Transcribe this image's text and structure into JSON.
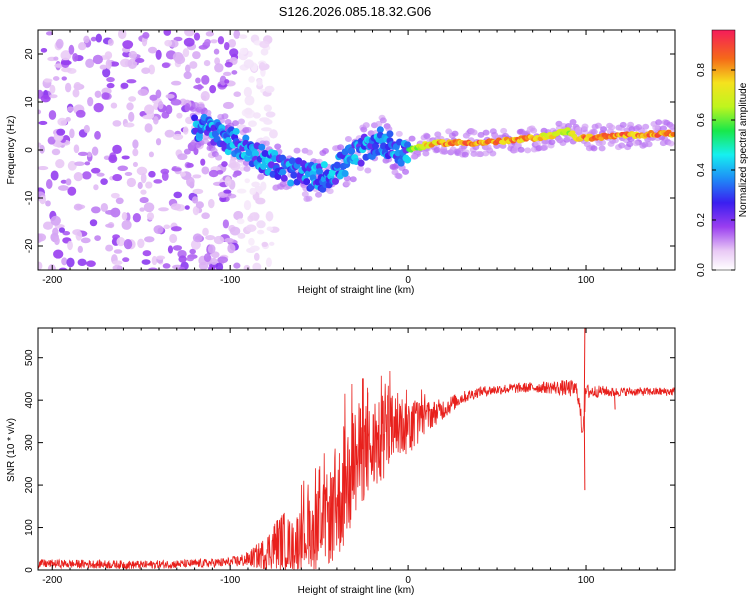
{
  "figure_title": "S126.2026.085.18.32.G06",
  "chart_data": [
    {
      "type": "heatmap",
      "title": "S126.2026.085.18.32.G06",
      "xlabel": "Height of straight line (km)",
      "ylabel": "Frequency (Hz)",
      "xlim": [
        -208,
        150
      ],
      "ylim": [
        -25,
        25
      ],
      "xticks": [
        -200,
        -100,
        0,
        100
      ],
      "yticks": [
        -20,
        -10,
        0,
        10,
        20
      ],
      "colorbar": {
        "label": "Normalized spectral amplitude",
        "range": [
          0.0,
          0.96
        ],
        "ticks": [
          0.0,
          0.2,
          0.4,
          0.6,
          0.8
        ]
      },
      "ridge": {
        "description": "Dominant frequency track (Hz) vs height (km)",
        "x": [
          -120,
          -110,
          -100,
          -90,
          -80,
          -70,
          -60,
          -50,
          -40,
          -30,
          -20,
          -15,
          -10,
          -5,
          0,
          10,
          20,
          40,
          60,
          80,
          90,
          95,
          100,
          120,
          150
        ],
        "y": [
          5,
          4,
          2,
          0,
          -2,
          -4,
          -5,
          -6,
          -4,
          -1,
          1,
          2,
          1,
          -1,
          0,
          1,
          1.5,
          1.5,
          2,
          3,
          4,
          2.5,
          2.5,
          3,
          3.5
        ],
        "amplitude": [
          0.35,
          0.3,
          0.25,
          0.3,
          0.3,
          0.35,
          0.4,
          0.35,
          0.3,
          0.3,
          0.35,
          0.4,
          0.45,
          0.5,
          0.6,
          0.8,
          0.9,
          0.9,
          0.9,
          0.8,
          0.7,
          0.8,
          0.9,
          0.9,
          0.9
        ]
      },
      "noise_region_x": [
        -208,
        -95
      ]
    },
    {
      "type": "line",
      "xlabel": "Height of straight line (km)",
      "ylabel": "SNR (10 * v/v)",
      "xlim": [
        -208,
        150
      ],
      "ylim": [
        0,
        570
      ],
      "xticks": [
        -200,
        -100,
        0,
        100
      ],
      "yticks": [
        0,
        100,
        200,
        300,
        400,
        500
      ],
      "color": "#e8201c",
      "series": [
        {
          "name": "SNR",
          "x": [
            -208,
            -180,
            -150,
            -120,
            -100,
            -90,
            -80,
            -75,
            -70,
            -65,
            -60,
            -55,
            -50,
            -45,
            -40,
            -35,
            -30,
            -25,
            -20,
            -15,
            -10,
            -5,
            0,
            5,
            10,
            15,
            20,
            30,
            40,
            50,
            60,
            70,
            80,
            90,
            95,
            98,
            100,
            105,
            110,
            115,
            120,
            150
          ],
          "y": [
            15,
            14,
            12,
            15,
            18,
            25,
            40,
            60,
            70,
            55,
            80,
            90,
            100,
            120,
            150,
            200,
            250,
            280,
            280,
            300,
            330,
            340,
            340,
            350,
            360,
            370,
            380,
            405,
            420,
            425,
            428,
            430,
            430,
            428,
            425,
            330,
            420,
            420,
            422,
            418,
            420,
            420
          ],
          "noise_amplitude": [
            10,
            10,
            10,
            10,
            12,
            18,
            40,
            60,
            70,
            60,
            80,
            90,
            100,
            110,
            130,
            150,
            140,
            120,
            110,
            100,
            90,
            80,
            70,
            55,
            40,
            30,
            25,
            15,
            12,
            12,
            12,
            12,
            15,
            20,
            20,
            25,
            20,
            15,
            12,
            12,
            10,
            10
          ]
        }
      ],
      "spikes": [
        {
          "x": -23,
          "y": 418
        },
        {
          "x": 99,
          "y": 570
        },
        {
          "x": 99,
          "y": 188
        },
        {
          "x": 116,
          "y": 378
        }
      ]
    }
  ]
}
